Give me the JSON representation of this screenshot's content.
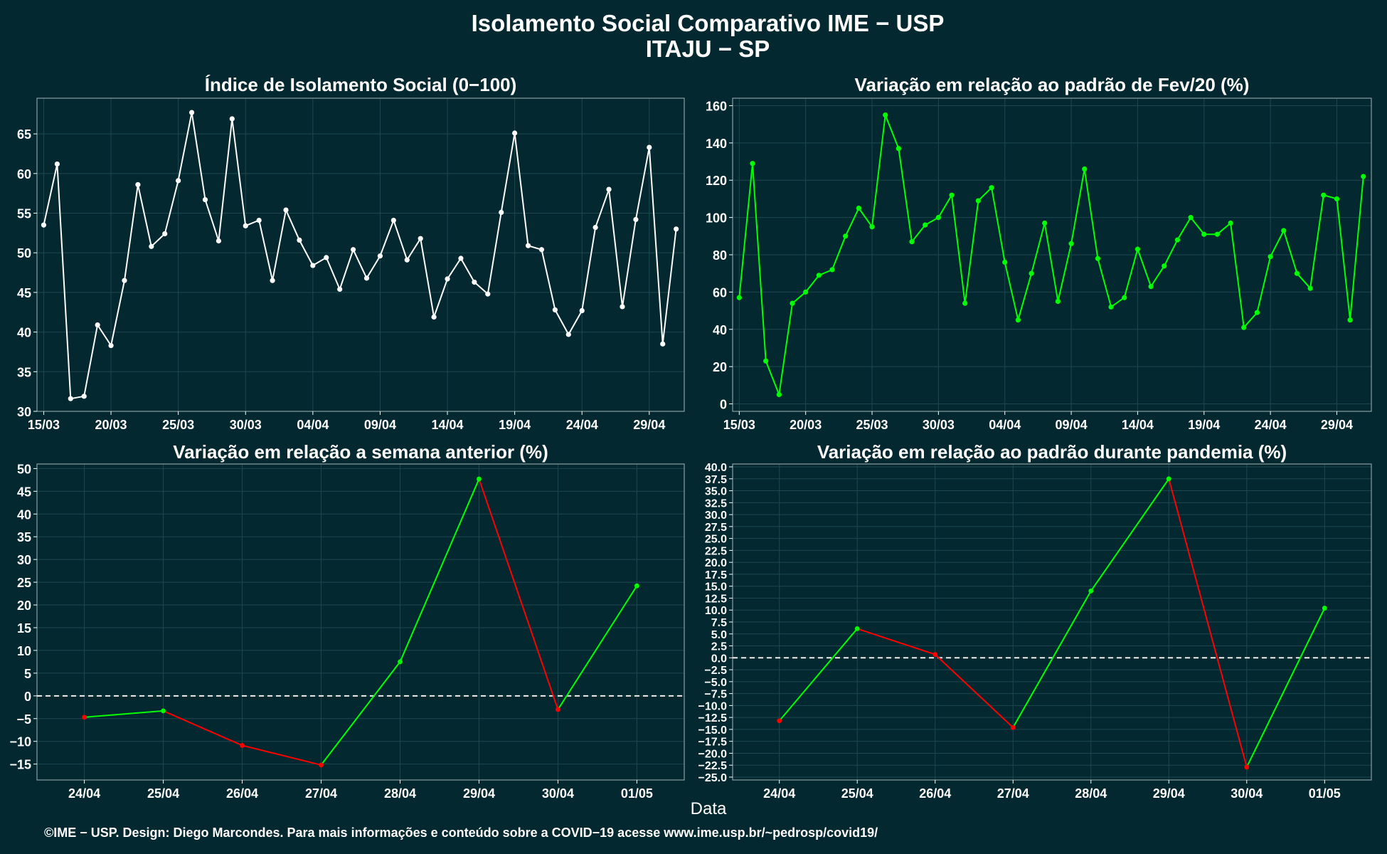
{
  "title": "Isolamento Social Comparativo IME − USP",
  "subtitle": "ITAJU − SP",
  "xlabel": "Data",
  "footer": "©IME − USP. Design: Diego Marcondes. Para mais informações e conteúdo sobre a COVID−19 acesse www.ime.usp.br/~pedrosp/covid19/",
  "colors": {
    "background": "#03282f",
    "white": "#ffffff",
    "green": "#00ff00",
    "red": "#ff0000",
    "grid": "#1d4750"
  },
  "chart_data": [
    {
      "type": "line",
      "title": "Índice de Isolamento Social (0−100)",
      "x_ticks": [
        "15/03",
        "20/03",
        "25/03",
        "30/03",
        "04/04",
        "09/04",
        "14/04",
        "19/04",
        "24/04",
        "29/04"
      ],
      "ylim": [
        30,
        69.5
      ],
      "y_ticks": [
        "30",
        "35",
        "40",
        "45",
        "50",
        "55",
        "60",
        "65"
      ],
      "series": [
        {
          "color": "#ffffff",
          "values": [
            53.5,
            61.2,
            31.6,
            31.9,
            40.9,
            38.3,
            46.5,
            58.6,
            50.8,
            52.4,
            59.1,
            67.7,
            56.7,
            51.5,
            66.9,
            53.4,
            54.1,
            46.5,
            55.4,
            51.6,
            48.4,
            49.4,
            45.4,
            50.4,
            46.8,
            49.6,
            54.1,
            49.1,
            51.8,
            41.9,
            46.7,
            49.3,
            46.3,
            44.8,
            55.1,
            65.1,
            50.9,
            50.4,
            42.8,
            39.7,
            42.7,
            53.2,
            58.0,
            43.2,
            54.2,
            63.3,
            38.5,
            53.0
          ]
        }
      ]
    },
    {
      "type": "line",
      "title": "Variação em relação ao padrão de Fev/20 (%)",
      "x_ticks": [
        "15/03",
        "20/03",
        "25/03",
        "30/03",
        "04/04",
        "09/04",
        "14/04",
        "19/04",
        "24/04",
        "29/04"
      ],
      "ylim": [
        -4,
        164
      ],
      "y_ticks": [
        "0",
        "20",
        "40",
        "60",
        "80",
        "100",
        "120",
        "140",
        "160"
      ],
      "series": [
        {
          "color": "#00ff00",
          "values": [
            57,
            129,
            23,
            5,
            54,
            60,
            69,
            72,
            90,
            105,
            95,
            155,
            137,
            87,
            96,
            100,
            112,
            54,
            109,
            116,
            76,
            45,
            70,
            97,
            55,
            86,
            126,
            78,
            52,
            57,
            83,
            63,
            74,
            88,
            100,
            91,
            91,
            97,
            41,
            49,
            79,
            93,
            70,
            62,
            112,
            110,
            45,
            122
          ]
        }
      ]
    },
    {
      "type": "line",
      "title": "Variação em relação a semana anterior (%)",
      "categories": [
        "24/04",
        "25/04",
        "26/04",
        "27/04",
        "28/04",
        "29/04",
        "30/04",
        "01/05"
      ],
      "ylim": [
        -18.5,
        51
      ],
      "y_ticks": [
        "−15",
        "−10",
        "−5",
        "0",
        "5",
        "10",
        "15",
        "20",
        "25",
        "30",
        "35",
        "40",
        "45",
        "50"
      ],
      "reference_line": 0,
      "series": [
        {
          "values": [
            -4.7,
            -3.3,
            -10.9,
            -15.2,
            7.5,
            47.7,
            -3.0,
            24.2
          ],
          "color_rule": "segment green when increasing, red when decreasing"
        }
      ]
    },
    {
      "type": "line",
      "title": "Variação em relação ao padrão durante pandemia (%)",
      "categories": [
        "24/04",
        "25/04",
        "26/04",
        "27/04",
        "28/04",
        "29/04",
        "30/04",
        "01/05"
      ],
      "ylim": [
        -25.6,
        40.6
      ],
      "y_ticks": [
        "−25.0",
        "−22.5",
        "−20.0",
        "−17.5",
        "−15.0",
        "−12.5",
        "−10.0",
        "−7.5",
        "−5.0",
        "−2.5",
        "0.0",
        "2.5",
        "5.0",
        "7.5",
        "10.0",
        "12.5",
        "15.0",
        "17.5",
        "20.0",
        "22.5",
        "25.0",
        "27.5",
        "30.0",
        "32.5",
        "35.0",
        "37.5",
        "40.0"
      ],
      "reference_line": 0,
      "series": [
        {
          "values": [
            -13.2,
            6.1,
            0.7,
            -14.6,
            14.0,
            37.5,
            -22.9,
            10.4
          ],
          "color_rule": "segment green when increasing, red when decreasing"
        }
      ]
    }
  ]
}
